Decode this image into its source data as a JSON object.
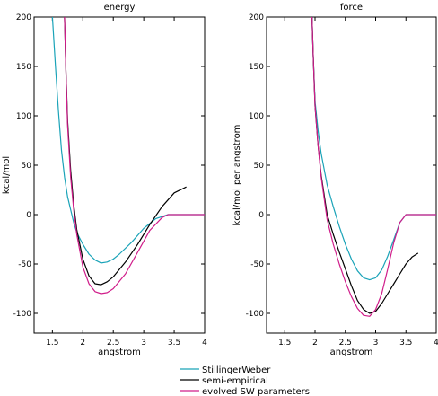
{
  "chart_data": [
    {
      "type": "line",
      "title": "energy",
      "xlabel": "angstrom",
      "ylabel": "kcal/mol",
      "xlim": [
        1.2,
        4.0
      ],
      "ylim": [
        -120,
        200
      ],
      "xticks": [
        1.5,
        2,
        2.5,
        3,
        3.5,
        4
      ],
      "xtick_labels": [
        "1.5",
        "2",
        "2.5",
        "3",
        "3.5",
        "4"
      ],
      "yticks": [
        -100,
        -50,
        0,
        50,
        100,
        150,
        200
      ],
      "ytick_labels": [
        "-100",
        "-50",
        "0",
        "50",
        "100",
        "150",
        "200"
      ],
      "grid": false,
      "series": [
        {
          "name": "StillingerWeber",
          "color": "#1aa3b8",
          "x": [
            1.5,
            1.55,
            1.6,
            1.65,
            1.7,
            1.75,
            1.8,
            1.85,
            1.9,
            2.0,
            2.1,
            2.2,
            2.3,
            2.4,
            2.5,
            2.6,
            2.8,
            3.0,
            3.2,
            3.4,
            3.5,
            3.6,
            3.7,
            3.8,
            4.0
          ],
          "y": [
            200,
            150,
            105,
            65,
            38,
            18,
            5,
            -8,
            -18,
            -30,
            -40,
            -46,
            -49,
            -48,
            -45,
            -40,
            -28,
            -14,
            -4,
            0,
            0,
            0,
            0,
            0,
            0
          ]
        },
        {
          "name": "semi-empirical",
          "color": "#000000",
          "x": [
            1.7,
            1.72,
            1.75,
            1.8,
            1.85,
            1.9,
            2.0,
            2.1,
            2.2,
            2.3,
            2.4,
            2.5,
            2.7,
            2.9,
            3.1,
            3.3,
            3.5,
            3.7
          ],
          "y": [
            200,
            150,
            95,
            45,
            10,
            -15,
            -45,
            -62,
            -70,
            -71,
            -68,
            -63,
            -48,
            -30,
            -10,
            8,
            22,
            28
          ]
        },
        {
          "name": "evolved SW parameters",
          "color": "#d01d8a",
          "x": [
            1.7,
            1.72,
            1.75,
            1.8,
            1.85,
            1.9,
            2.0,
            2.1,
            2.2,
            2.3,
            2.4,
            2.5,
            2.7,
            2.9,
            3.1,
            3.3,
            3.4,
            3.5,
            3.6,
            3.8,
            4.0
          ],
          "y": [
            200,
            150,
            90,
            38,
            5,
            -20,
            -53,
            -70,
            -78,
            -80,
            -79,
            -75,
            -60,
            -38,
            -16,
            -3,
            0,
            0,
            0,
            0,
            0
          ]
        }
      ]
    },
    {
      "type": "line",
      "title": "force",
      "xlabel": "angstrom",
      "ylabel": "kcal/mol per angstrom",
      "xlim": [
        1.2,
        4.0
      ],
      "ylim": [
        -120,
        200
      ],
      "xticks": [
        1.5,
        2,
        2.5,
        3,
        3.5,
        4
      ],
      "xtick_labels": [
        "1.5",
        "2",
        "2.5",
        "3",
        "3.5",
        "4"
      ],
      "yticks": [
        -100,
        -50,
        0,
        50,
        100,
        150,
        200
      ],
      "ytick_labels": [
        "-100",
        "-50",
        "0",
        "50",
        "100",
        "150",
        "200"
      ],
      "grid": false,
      "series": [
        {
          "name": "StillingerWeber",
          "color": "#1aa3b8",
          "x": [
            1.95,
            1.97,
            2.0,
            2.05,
            2.1,
            2.2,
            2.3,
            2.4,
            2.5,
            2.6,
            2.7,
            2.8,
            2.9,
            3.0,
            3.1,
            3.2,
            3.3,
            3.4,
            3.5,
            3.6,
            3.7,
            3.8,
            4.0
          ],
          "y": [
            200,
            160,
            115,
            85,
            62,
            30,
            8,
            -12,
            -30,
            -45,
            -57,
            -64,
            -66,
            -64,
            -56,
            -42,
            -25,
            -8,
            0,
            0,
            0,
            0,
            0
          ]
        },
        {
          "name": "semi-empirical",
          "color": "#000000",
          "x": [
            1.95,
            1.97,
            2.0,
            2.05,
            2.1,
            2.2,
            2.3,
            2.4,
            2.5,
            2.6,
            2.7,
            2.8,
            2.9,
            3.0,
            3.1,
            3.2,
            3.3,
            3.4,
            3.5,
            3.6,
            3.7
          ],
          "y": [
            200,
            160,
            110,
            70,
            40,
            0,
            -20,
            -38,
            -55,
            -72,
            -87,
            -96,
            -100,
            -98,
            -90,
            -80,
            -70,
            -60,
            -50,
            -43,
            -39
          ]
        },
        {
          "name": "evolved SW parameters",
          "color": "#d01d8a",
          "x": [
            1.95,
            1.97,
            2.0,
            2.05,
            2.1,
            2.2,
            2.3,
            2.4,
            2.5,
            2.6,
            2.7,
            2.8,
            2.9,
            3.0,
            3.1,
            3.2,
            3.3,
            3.4,
            3.5,
            3.6,
            3.8,
            4.0
          ],
          "y": [
            200,
            160,
            110,
            70,
            38,
            -5,
            -30,
            -50,
            -68,
            -83,
            -95,
            -102,
            -103,
            -96,
            -80,
            -55,
            -28,
            -8,
            0,
            0,
            0,
            0
          ]
        }
      ]
    }
  ],
  "legend": {
    "position": "bottom-center",
    "entries": [
      {
        "label": "StillingerWeber",
        "color": "#1aa3b8"
      },
      {
        "label": "semi-empirical",
        "color": "#000000"
      },
      {
        "label": "evolved SW parameters",
        "color": "#d01d8a"
      }
    ]
  }
}
